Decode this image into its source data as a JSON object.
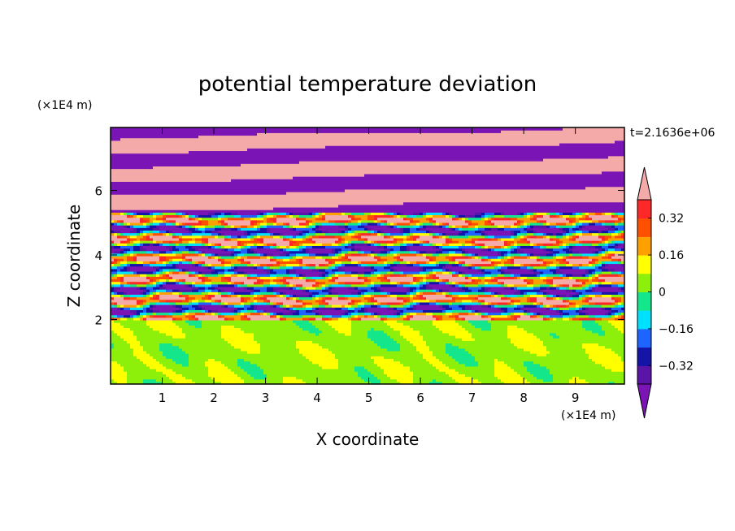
{
  "chart_data": {
    "type": "heatmap",
    "title": "potential temperature deviation",
    "time_label": "t=2.1636e+06",
    "xlabel": "X coordinate",
    "ylabel": "Z coordinate",
    "x_unit": "(×1E4 m)",
    "y_unit": "(×1E4 m)",
    "xlim": [
      0,
      9.95
    ],
    "ylim": [
      0,
      7.95
    ],
    "x_ticks": [
      "1",
      "2",
      "3",
      "4",
      "5",
      "6",
      "7",
      "8",
      "9"
    ],
    "y_ticks": [
      "2",
      "4",
      "6"
    ],
    "grid": false,
    "colorbar": {
      "position": "right",
      "extend": "both",
      "tick_labels": [
        "0.32",
        "0.16",
        "0",
        "−0.16",
        "−0.32"
      ],
      "tick_values": [
        0.32,
        0.16,
        0,
        -0.16,
        -0.32
      ],
      "levels": [
        -0.4,
        -0.32,
        -0.24,
        -0.16,
        -0.08,
        0,
        0.08,
        0.16,
        0.24,
        0.32,
        0.4
      ],
      "colors": [
        "#5b14a8",
        "#1414a8",
        "#1e64ff",
        "#00e0ff",
        "#14e68c",
        "#8cf00a",
        "#ffff00",
        "#ffa000",
        "#ff5000",
        "#ff2828"
      ],
      "under_color": "#7a14b4",
      "over_color": "#f5aaaa"
    },
    "bands": [
      {
        "z0": 0,
        "z1": 1.95,
        "description_value": "near 0 (green / lime)"
      },
      {
        "z0": 1.95,
        "z1": 5.3,
        "description_value": "mixed (−0.4 to +0.4)"
      },
      {
        "z0": 5.3,
        "z1": 7.95,
        "description_value": "alternating over/under (±0.4)"
      }
    ]
  }
}
